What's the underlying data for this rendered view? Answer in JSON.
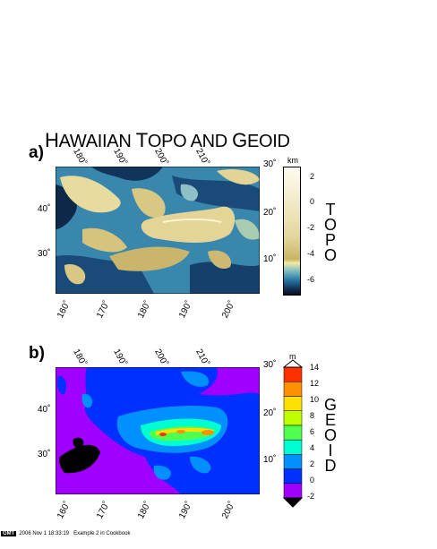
{
  "title": {
    "first_letter_1": "H",
    "rest_1": "AWAIIAN ",
    "first_letter_2": "T",
    "rest_2": "OPO AND ",
    "first_letter_3": "G",
    "rest_3": "EOID"
  },
  "panels": {
    "a": {
      "letter": "a)",
      "top_ticks": [
        "180˚",
        "190˚",
        "200˚",
        "210˚"
      ],
      "top_right_tick": "30˚",
      "bottom_ticks": [
        "160˚",
        "170˚",
        "180˚",
        "190˚",
        "200˚"
      ],
      "left_ticks": [
        "40˚",
        "30˚"
      ],
      "right_ticks": [
        "20˚",
        "10˚"
      ],
      "colorbar_unit": "km",
      "colorbar_ticks": [
        "2",
        "0",
        "-2",
        "-4",
        "-6"
      ],
      "side_label": [
        "T",
        "O",
        "P",
        "O"
      ]
    },
    "b": {
      "letter": "b)",
      "top_ticks": [
        "180˚",
        "190˚",
        "200˚",
        "210˚"
      ],
      "top_right_tick": "30˚",
      "bottom_ticks": [
        "160˚",
        "170˚",
        "180˚",
        "190˚",
        "200˚"
      ],
      "left_ticks": [
        "40˚",
        "30˚"
      ],
      "right_ticks": [
        "20˚",
        "10˚"
      ],
      "colorbar_unit": "m",
      "colorbar_ticks": [
        "14",
        "12",
        "10",
        "8",
        "6",
        "4",
        "2",
        "0",
        "-2"
      ],
      "side_label": [
        "G",
        "E",
        "O",
        "I",
        "D"
      ]
    }
  },
  "colors": {
    "geoid_levels": [
      "#a000ff",
      "#0030ff",
      "#0090ff",
      "#00ffd0",
      "#50ff50",
      "#c0ff00",
      "#ffe000",
      "#ff9000",
      "#ff3000"
    ],
    "topo_light": "#e8dba0",
    "topo_dark": "#0a1830",
    "topo_mid": "#3b8fb0"
  },
  "footer": {
    "logo": "GMT",
    "timestamp": "2006 Nov  1  18:33:19",
    "caption": "Example 2 in Cookbook"
  }
}
